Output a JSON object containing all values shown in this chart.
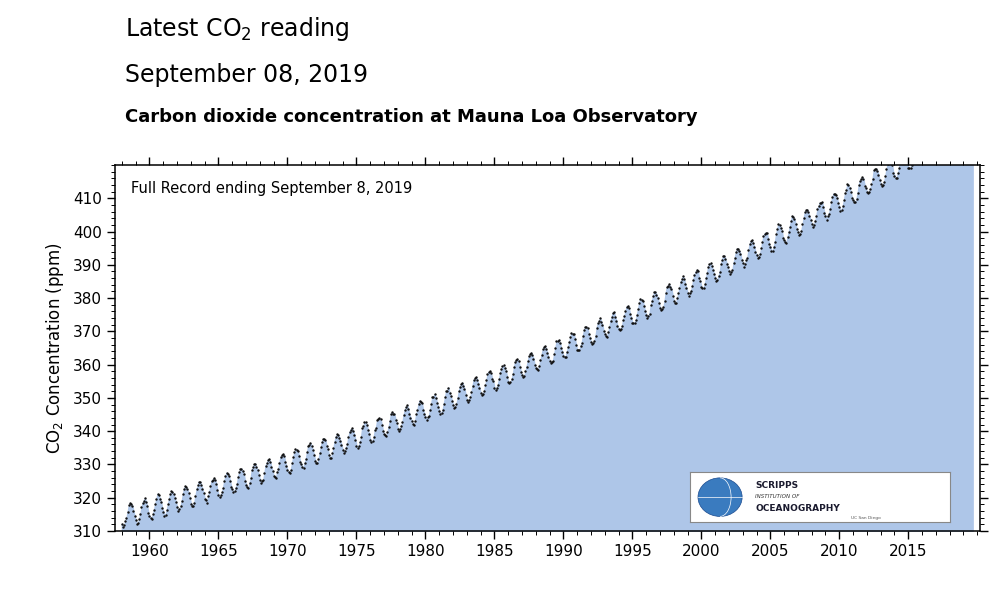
{
  "title_line1": "Latest CO$_2$ reading",
  "title_line2": "September 08, 2019",
  "subtitle": "Carbon dioxide concentration at Mauna Loa Observatory",
  "annotation": "Full Record ending September 8, 2019",
  "ylabel": "CO$_2$ Concentration (ppm)",
  "xlim": [
    1957.5,
    2020.2
  ],
  "ylim": [
    310,
    420
  ],
  "yticks": [
    310,
    320,
    330,
    340,
    350,
    360,
    370,
    380,
    390,
    400,
    410
  ],
  "xticks": [
    1960,
    1965,
    1970,
    1975,
    1980,
    1985,
    1990,
    1995,
    2000,
    2005,
    2010,
    2015
  ],
  "fill_color": "#aec6e8",
  "dot_color": "#111111",
  "background_color": "#ffffff",
  "dot_size": 3.0,
  "trend_a": 0.012,
  "trend_b": 1.2,
  "trend_c": 314.4,
  "seasonal_amp": 3.2,
  "t_start": 1958.0,
  "t_end": 2019.72
}
